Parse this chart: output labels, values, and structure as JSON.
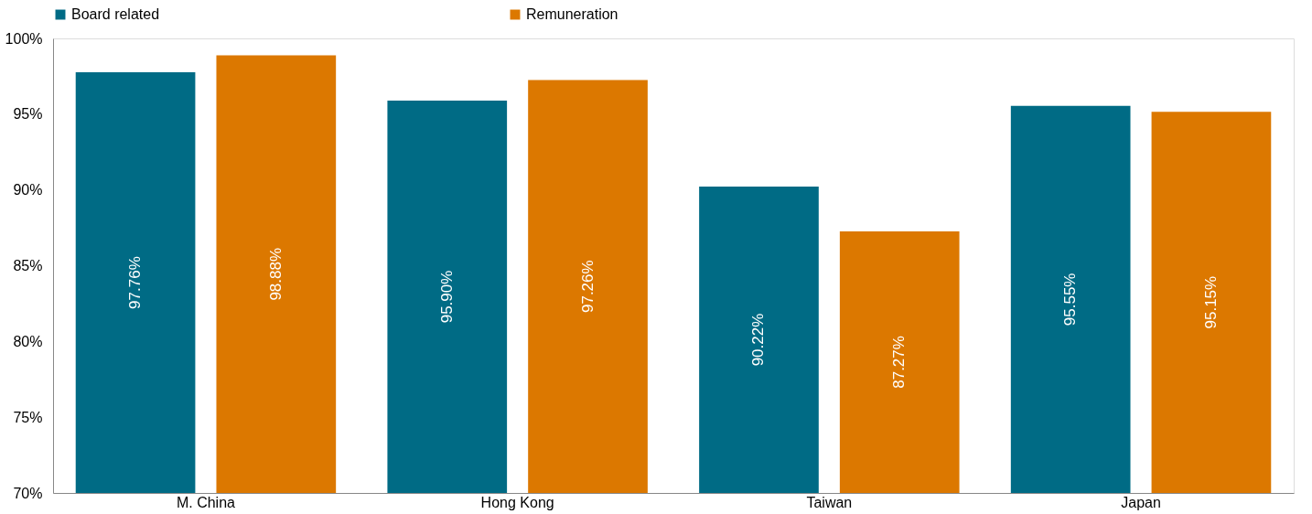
{
  "chart_data": {
    "type": "bar",
    "categories": [
      "M. China",
      "Hong Kong",
      "Taiwan",
      "Japan"
    ],
    "series": [
      {
        "name": "Board related",
        "color": "#006b85",
        "values": [
          97.76,
          95.9,
          90.22,
          95.55
        ],
        "value_labels": [
          "97.76%",
          "95.90%",
          "90.22%",
          "95.55%"
        ]
      },
      {
        "name": "Remuneration",
        "color": "#dc7800",
        "values": [
          98.88,
          97.26,
          87.27,
          95.15
        ],
        "value_labels": [
          "98.88%",
          "97.26%",
          "87.27%",
          "95.15%"
        ]
      }
    ],
    "ylim": [
      70,
      100
    ],
    "yticks": [
      {
        "value": 70,
        "label": "70%"
      },
      {
        "value": 75,
        "label": "75%"
      },
      {
        "value": 80,
        "label": "80%"
      },
      {
        "value": 85,
        "label": "85%"
      },
      {
        "value": 90,
        "label": "90%"
      },
      {
        "value": 95,
        "label": "95%"
      },
      {
        "value": 100,
        "label": "100%"
      }
    ],
    "grid": false,
    "legend": "top"
  }
}
